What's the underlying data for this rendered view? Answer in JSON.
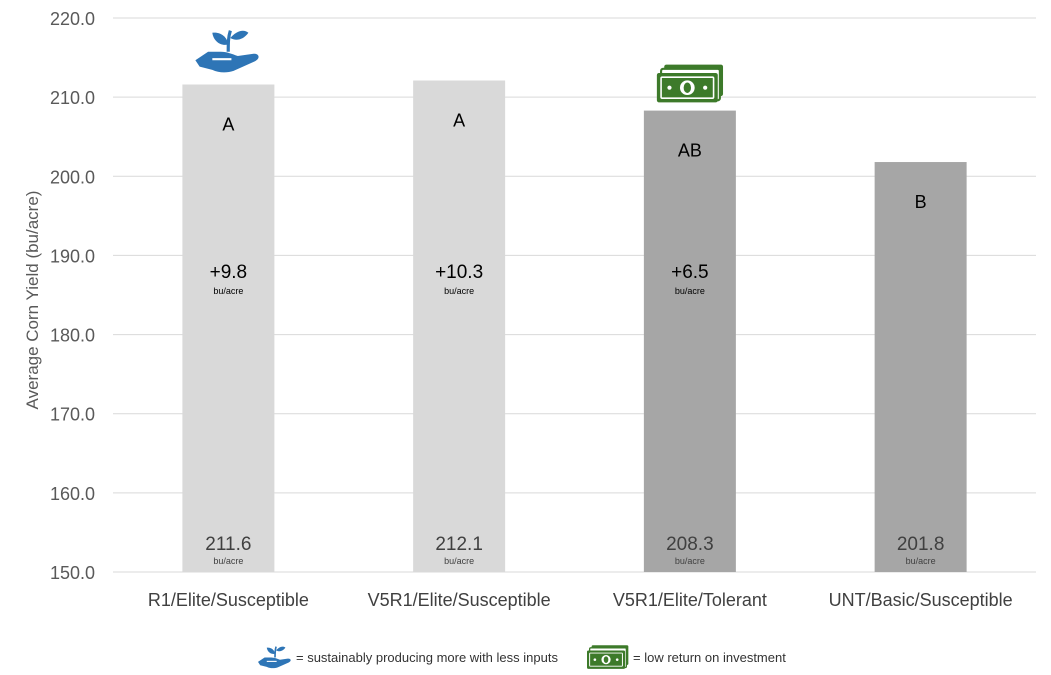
{
  "chart_data": {
    "type": "bar",
    "title": "",
    "xlabel": "",
    "ylabel": "Average Corn Yield (bu/acre)",
    "ylim": [
      150,
      220
    ],
    "yticks": [
      "150.0",
      "160.0",
      "170.0",
      "180.0",
      "190.0",
      "200.0",
      "210.0",
      "220.0"
    ],
    "grid": true,
    "categories": [
      "R1/Elite/Susceptible",
      "V5R1/Elite/Susceptible",
      "V5R1/Elite/Tolerant",
      "UNT/Basic/Susceptible"
    ],
    "values": [
      211.6,
      212.1,
      208.3,
      201.8
    ],
    "value_labels": [
      "211.6",
      "212.1",
      "208.3",
      "201.8"
    ],
    "value_units": [
      "bu/acre",
      "bu/acre",
      "bu/acre",
      "bu/acre"
    ],
    "letter_groups": [
      "A",
      "A",
      "AB",
      "B"
    ],
    "increase_labels": [
      "+9.8",
      "+10.3",
      "+6.5",
      ""
    ],
    "increase_units": [
      "bu/acre",
      "bu/acre",
      "bu/acre",
      ""
    ],
    "bar_colors": [
      "#d9d9d9",
      "#d9d9d9",
      "#a6a6a6",
      "#a6a6a6"
    ],
    "bar_icons": [
      "sustainable-hand-icon",
      "",
      "money-icon",
      ""
    ]
  },
  "legend": [
    {
      "icon": "sustainable-hand-icon",
      "label": "= sustainably producing more with less inputs"
    },
    {
      "icon": "money-icon",
      "label": "= low return on investment"
    }
  ],
  "colors": {
    "grid": "#d9d9d9",
    "axis_text": "#595959",
    "label_text": "#000000",
    "value_text": "#404040",
    "sustainable_icon": "#2e75b6",
    "money_icon": "#3d7a2a"
  }
}
